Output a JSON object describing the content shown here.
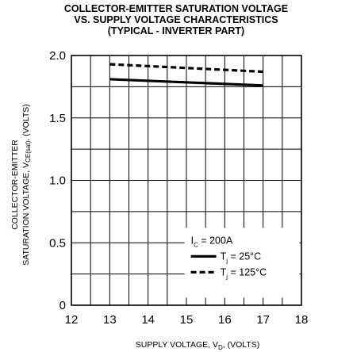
{
  "chart_data": {
    "type": "line",
    "title_lines": [
      "COLLECTOR-EMITTER SATURATION VOLTAGE",
      "VS. SUPPLY VOLTAGE CHARACTERISTICS",
      "(TYPICAL - INVERTER PART)"
    ],
    "xlabel": {
      "main": "SUPPLY VOLTAGE, V",
      "sub": "D",
      "tail": ", (VOLTS)"
    },
    "ylabel": {
      "line1": "COLLECTOR-EMITTER",
      "line2_main": "SATURATION VOLTAGE, V",
      "line2_sub": "CE(sat)",
      "line2_tail": ", (VOLTS)"
    },
    "xlim": [
      12,
      18
    ],
    "ylim": [
      0,
      2.0
    ],
    "x_ticks": [
      12,
      13,
      14,
      15,
      16,
      17,
      18
    ],
    "x_tick_labels": [
      "12",
      "13",
      "14",
      "15",
      "16",
      "17",
      "18"
    ],
    "y_ticks": [
      0,
      0.5,
      1.0,
      1.5,
      2.0
    ],
    "y_tick_labels": [
      "0",
      "0.5",
      "1.0",
      "1.5",
      "2.0"
    ],
    "grid": {
      "x_step": 0.5,
      "y_step": 0.25
    },
    "legend": {
      "condition_main": "I",
      "condition_sub": "C",
      "condition_tail": " = 200A",
      "placement": "bottom-right"
    },
    "series": [
      {
        "name_main": "T",
        "name_sub": "j",
        "name_tail": " = 25°C",
        "style": "solid",
        "x": [
          13,
          17
        ],
        "y": [
          1.81,
          1.76
        ]
      },
      {
        "name_main": "T",
        "name_sub": "j",
        "name_tail": " = 125°C",
        "style": "dashed",
        "x": [
          13,
          17
        ],
        "y": [
          1.93,
          1.87
        ]
      }
    ]
  }
}
